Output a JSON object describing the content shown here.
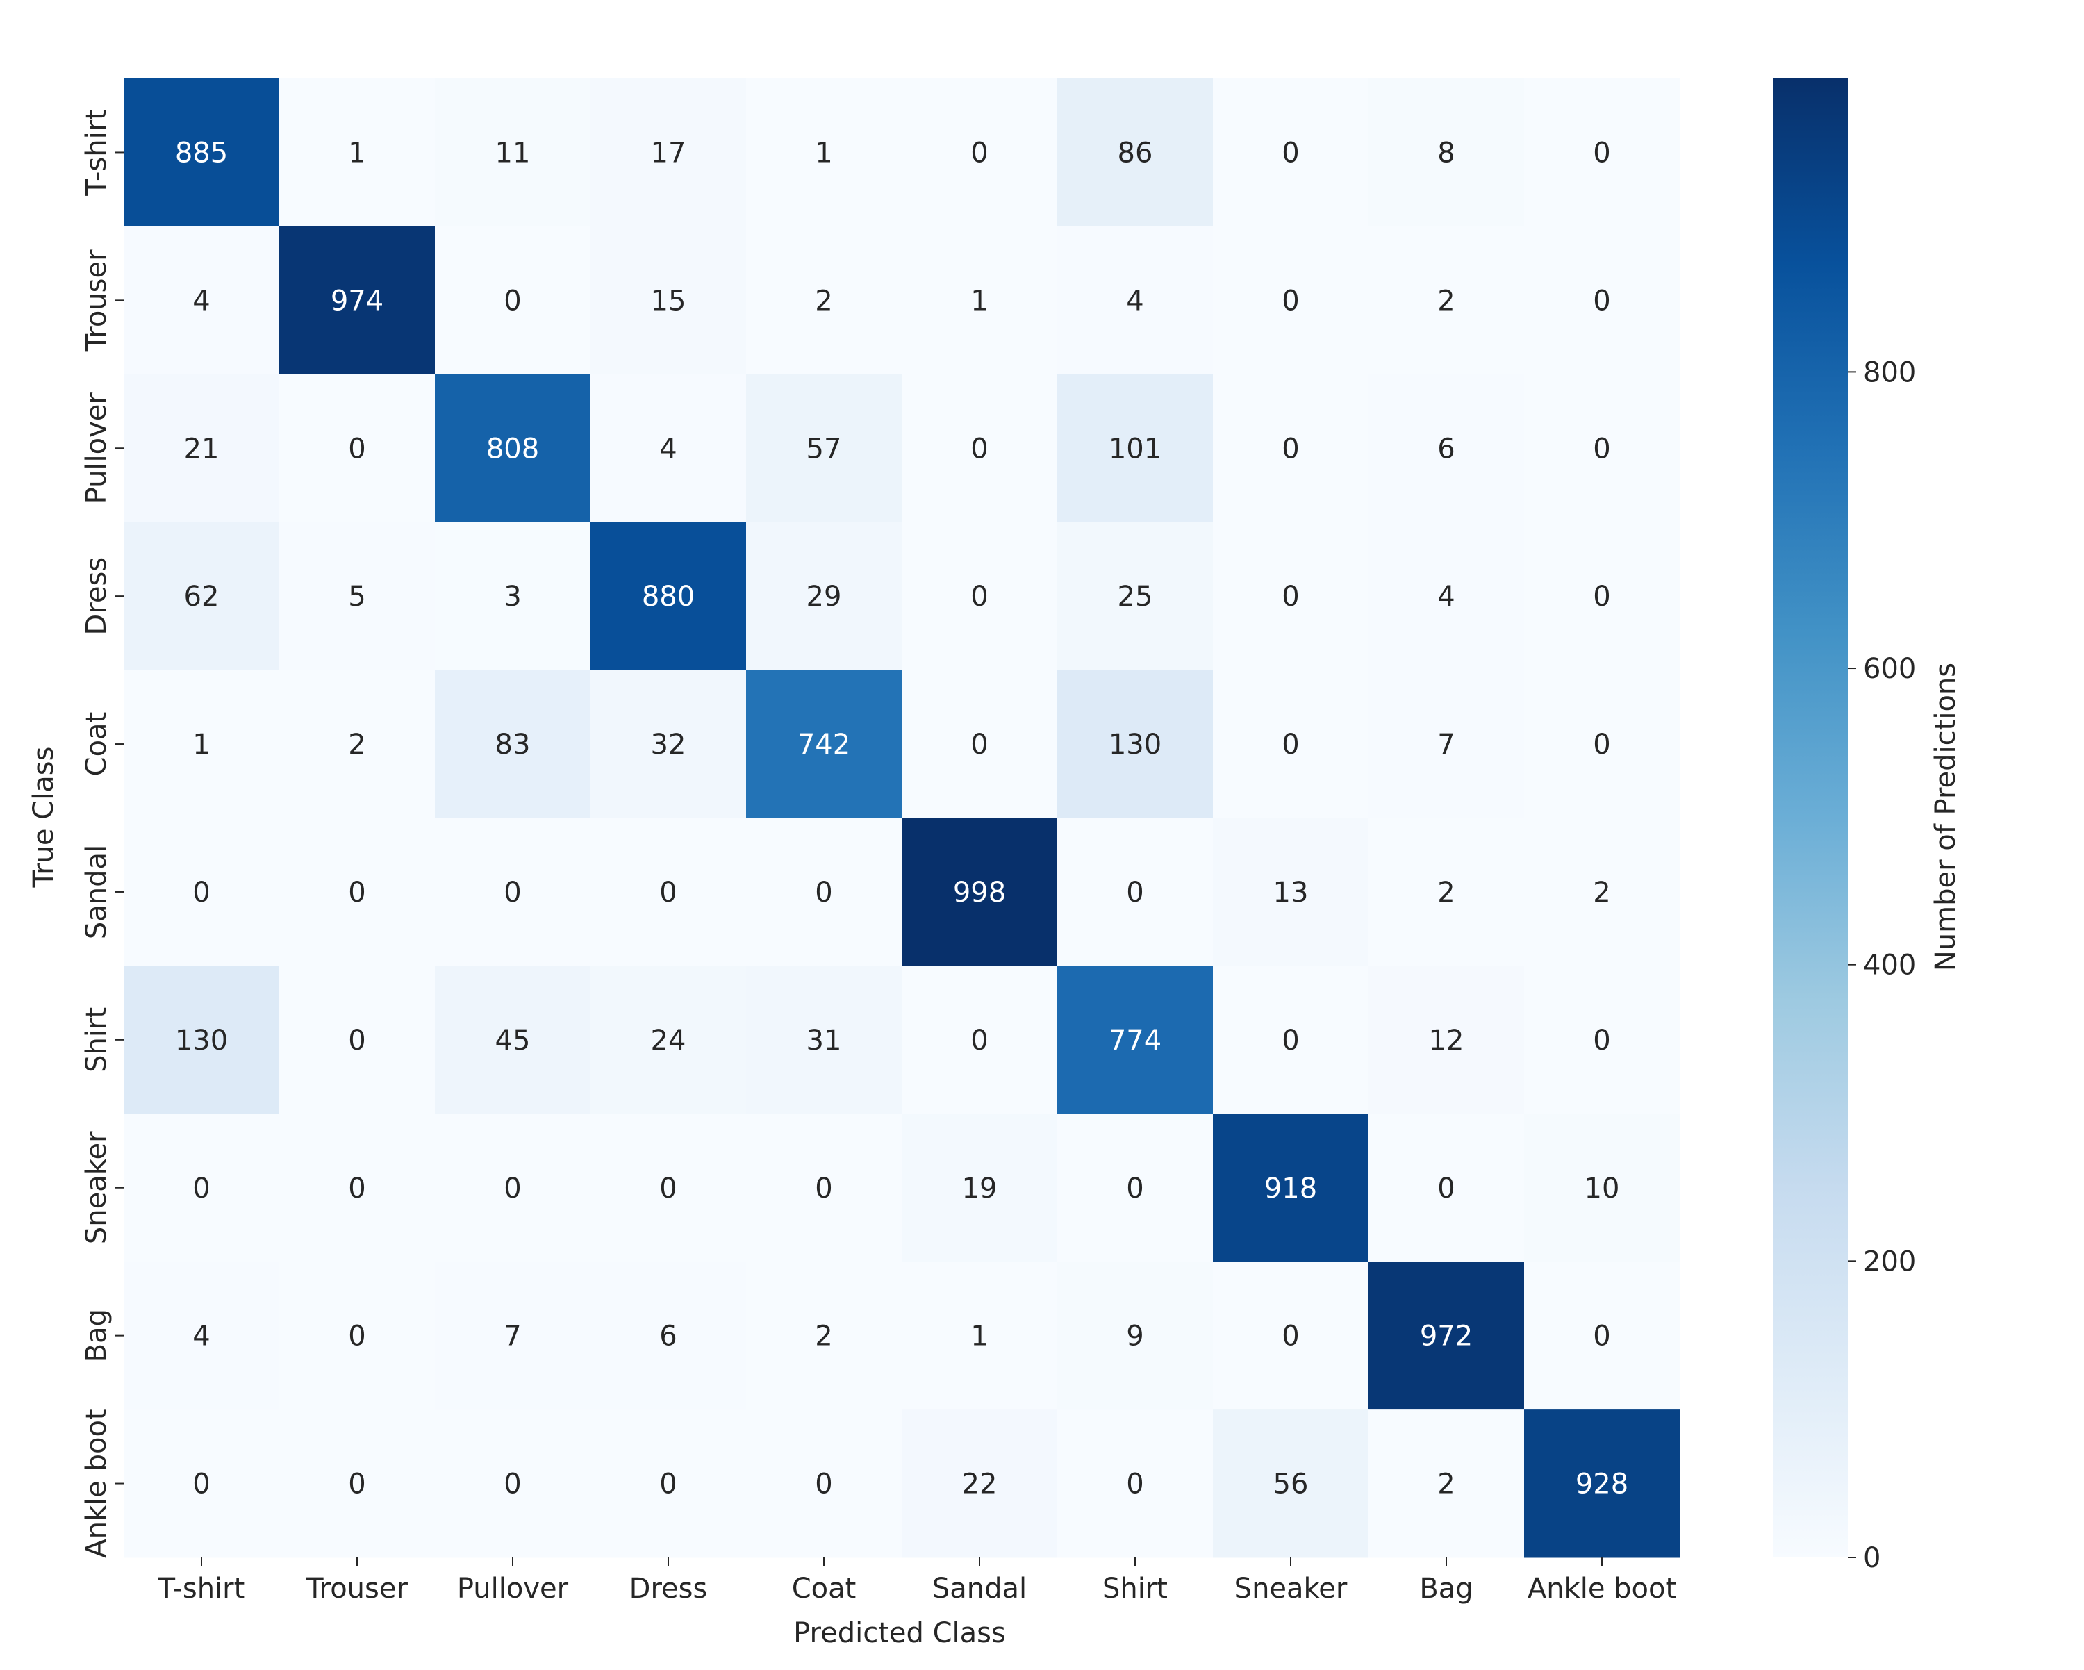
{
  "chart_data": {
    "type": "heatmap",
    "title": "",
    "xlabel": "Predicted Class",
    "ylabel": "True Class",
    "x_categories": [
      "T-shirt",
      "Trouser",
      "Pullover",
      "Dress",
      "Coat",
      "Sandal",
      "Shirt",
      "Sneaker",
      "Bag",
      "Ankle boot"
    ],
    "y_categories": [
      "T-shirt",
      "Trouser",
      "Pullover",
      "Dress",
      "Coat",
      "Sandal",
      "Shirt",
      "Sneaker",
      "Bag",
      "Ankle boot"
    ],
    "values": [
      [
        885,
        1,
        11,
        17,
        1,
        0,
        86,
        0,
        8,
        0
      ],
      [
        4,
        974,
        0,
        15,
        2,
        1,
        4,
        0,
        2,
        0
      ],
      [
        21,
        0,
        808,
        4,
        57,
        0,
        101,
        0,
        6,
        0
      ],
      [
        62,
        5,
        3,
        880,
        29,
        0,
        25,
        0,
        4,
        0
      ],
      [
        1,
        2,
        83,
        32,
        742,
        0,
        130,
        0,
        7,
        0
      ],
      [
        0,
        0,
        0,
        0,
        0,
        998,
        0,
        13,
        2,
        2
      ],
      [
        130,
        0,
        45,
        24,
        31,
        0,
        774,
        0,
        12,
        0
      ],
      [
        0,
        0,
        0,
        0,
        0,
        19,
        0,
        918,
        0,
        10
      ],
      [
        4,
        0,
        7,
        6,
        2,
        1,
        9,
        0,
        972,
        0
      ],
      [
        0,
        0,
        0,
        0,
        0,
        22,
        0,
        56,
        2,
        928
      ]
    ],
    "colorbar": {
      "label": "Number of Predictions",
      "colormap": "Blues",
      "range": [
        0,
        998
      ],
      "ticks": [
        0,
        200,
        400,
        600,
        800
      ]
    },
    "grid": false,
    "legend": "none"
  }
}
